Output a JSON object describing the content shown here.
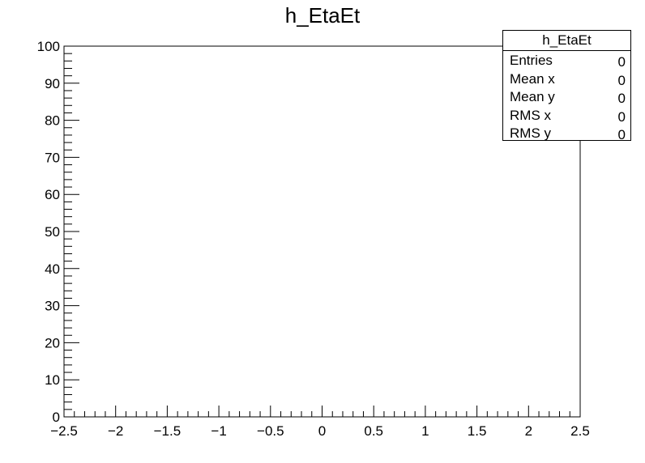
{
  "chart_data": {
    "type": "histogram2d",
    "title": "h_EtaEt",
    "xlim": [
      -2.5,
      2.5
    ],
    "ylim": [
      0,
      100
    ],
    "xticks": [
      -2.5,
      -2,
      -1.5,
      -1,
      -0.5,
      0,
      0.5,
      1,
      1.5,
      2,
      2.5
    ],
    "xtick_labels": [
      "−2.5",
      "−2",
      "−1.5",
      "−1",
      "−0.5",
      "0",
      "0.5",
      "1",
      "1.5",
      "2",
      "2.5"
    ],
    "yticks": [
      0,
      10,
      20,
      30,
      40,
      50,
      60,
      70,
      80,
      90,
      100
    ],
    "ytick_labels": [
      "0",
      "10",
      "20",
      "30",
      "40",
      "50",
      "60",
      "70",
      "80",
      "90",
      "100"
    ],
    "x_minor_per_major": 5,
    "y_minor_per_major": 5,
    "entries": []
  },
  "stats": {
    "title": "h_EtaEt",
    "rows": [
      {
        "label": "Entries",
        "value": "0"
      },
      {
        "label": "Mean x",
        "value": "0"
      },
      {
        "label": "Mean y",
        "value": "0"
      },
      {
        "label": "RMS x",
        "value": "0"
      },
      {
        "label": "RMS y",
        "value": "0"
      }
    ]
  }
}
